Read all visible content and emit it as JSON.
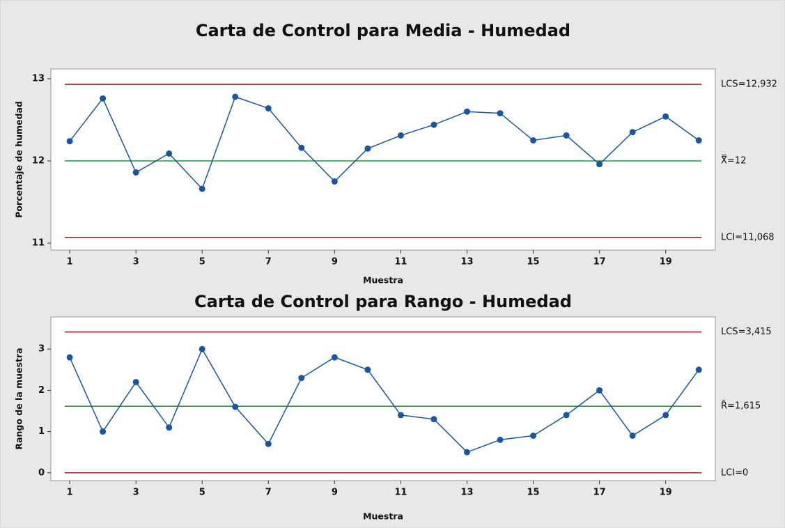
{
  "chart_data": [
    {
      "type": "line",
      "title": "Carta de Control para Media - Humedad",
      "x_label": "Muestra",
      "y_label": "Porcentaje de humedad",
      "x": [
        1,
        2,
        3,
        4,
        5,
        6,
        7,
        8,
        9,
        10,
        11,
        12,
        13,
        14,
        15,
        16,
        17,
        18,
        19,
        20
      ],
      "series": [
        {
          "name": "Media",
          "color": "#1a56a0",
          "values": [
            12.24,
            12.76,
            11.86,
            12.09,
            11.66,
            12.78,
            12.64,
            12.16,
            11.75,
            12.15,
            12.31,
            12.44,
            12.6,
            12.58,
            12.25,
            12.31,
            11.96,
            12.35,
            12.54,
            12.25
          ]
        }
      ],
      "control_lines": [
        {
          "label": "LCS=12,932",
          "value": 12.932,
          "color": "#9b2226"
        },
        {
          "label": "X̿=12",
          "value": 12,
          "color": "#1e9a2e"
        },
        {
          "label": "LCI=11,068",
          "value": 11.068,
          "color": "#9b2226"
        }
      ],
      "xlim": [
        0.43,
        20.5
      ],
      "xticks": [
        1,
        3,
        5,
        7,
        9,
        11,
        13,
        15,
        17,
        19
      ],
      "ylim": [
        10.915,
        13.119
      ],
      "yticks": [
        11,
        12,
        13
      ]
    },
    {
      "type": "line",
      "title": "Carta de Control para Rango - Humedad",
      "x_label": "Muestra",
      "y_label": "Rango de la muestra",
      "x": [
        1,
        2,
        3,
        4,
        5,
        6,
        7,
        8,
        9,
        10,
        11,
        12,
        13,
        14,
        15,
        16,
        17,
        18,
        19,
        20
      ],
      "series": [
        {
          "name": "Rango",
          "color": "#1a56a0",
          "values": [
            2.8,
            1.0,
            2.2,
            1.1,
            3.0,
            1.6,
            0.7,
            2.3,
            2.8,
            2.5,
            1.4,
            1.3,
            0.5,
            0.8,
            0.9,
            1.4,
            2.0,
            0.9,
            1.4,
            2.5
          ]
        }
      ],
      "control_lines": [
        {
          "label": "LCS=3,415",
          "value": 3.415,
          "color": "#9b2226"
        },
        {
          "label": "R̄=1,615",
          "value": 1.615,
          "color": "#1e9a2e"
        },
        {
          "label": "LCI=0",
          "value": 0,
          "color": "#9b2226"
        }
      ],
      "xlim": [
        0.43,
        20.5
      ],
      "xticks": [
        1,
        3,
        5,
        7,
        9,
        11,
        13,
        15,
        17,
        19
      ],
      "ylim": [
        -0.19,
        3.78
      ],
      "yticks": [
        0,
        1,
        2,
        3
      ]
    }
  ]
}
